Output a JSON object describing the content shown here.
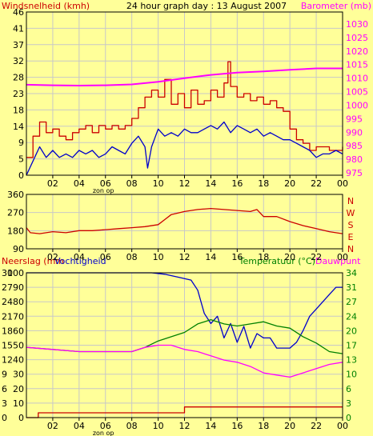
{
  "colors": {
    "background": "#ffff99",
    "plot_bg": "#ffff99",
    "grid": "#c8c8c8",
    "frame": "#000000",
    "red": "#cc0000",
    "blue": "#0000cc",
    "magenta": "#ff00ff",
    "green": "#008000",
    "black": "#000000"
  },
  "chart_data": [
    {
      "type": "line",
      "title": "24 hour graph day : 13 August 2007",
      "ylabel": "Windsnelheid (kmh)",
      "y2label": "Barometer (mb)",
      "ylim": [
        0,
        46
      ],
      "y2lim": [
        975,
        1030
      ],
      "yticks": [
        "0",
        "5",
        "9",
        "14",
        "18",
        "23",
        "28",
        "32",
        "37",
        "41",
        "46"
      ],
      "y2ticks": [
        "975",
        "980",
        "985",
        "990",
        "995",
        "1000",
        "1005",
        "1010",
        "1015",
        "1020",
        "1025",
        "1030"
      ],
      "x_labels": [
        "02",
        "04",
        "06",
        "08",
        "10",
        "12",
        "14",
        "16",
        "18",
        "20",
        "22",
        "00"
      ],
      "sunrise_label": "zon op",
      "grid": true,
      "series": [
        {
          "color": "#cc0000",
          "axis": "left",
          "step": true,
          "x": [
            0,
            0.5,
            1,
            1.5,
            2,
            2.5,
            3,
            3.5,
            4,
            4.5,
            5,
            5.5,
            6,
            6.5,
            7,
            7.5,
            8,
            8.5,
            9,
            9.5,
            10,
            10.5,
            11,
            11.5,
            12,
            12.5,
            13,
            13.5,
            14,
            14.5,
            15,
            15.3,
            15.5,
            16,
            16.5,
            17,
            17.5,
            18,
            18.5,
            19,
            19.5,
            20,
            20.5,
            21,
            21.5,
            22,
            22.5,
            23,
            23.5,
            24
          ],
          "values": [
            5,
            11,
            15,
            12,
            13,
            11,
            10,
            12,
            13,
            14,
            12,
            14,
            13,
            14,
            13,
            14,
            16,
            19,
            22,
            24,
            22,
            27,
            20,
            23,
            19,
            24,
            20,
            21,
            24,
            22,
            26,
            32,
            25,
            22,
            23,
            21,
            22,
            20,
            21,
            19,
            18,
            13,
            10,
            9,
            7,
            8,
            8,
            7,
            7,
            8
          ]
        },
        {
          "color": "#0000cc",
          "axis": "left",
          "step": false,
          "x": [
            0,
            0.5,
            1,
            1.5,
            2,
            2.5,
            3,
            3.5,
            4,
            4.5,
            5,
            5.5,
            6,
            6.5,
            7,
            7.5,
            8,
            8.5,
            9,
            9.2,
            9.5,
            10,
            10.5,
            11,
            11.5,
            12,
            12.5,
            13,
            13.5,
            14,
            14.5,
            15,
            15.5,
            16,
            16.5,
            17,
            17.5,
            18,
            18.5,
            19,
            19.5,
            20,
            20.5,
            21,
            21.5,
            22,
            22.5,
            23,
            23.5,
            24
          ],
          "values": [
            0,
            4,
            8,
            5,
            7,
            5,
            6,
            5,
            7,
            6,
            7,
            5,
            6,
            8,
            7,
            6,
            9,
            11,
            8,
            2,
            8,
            13,
            11,
            12,
            11,
            13,
            12,
            12,
            13,
            14,
            13,
            15,
            12,
            14,
            13,
            12,
            13,
            11,
            12,
            11,
            10,
            10,
            9,
            8,
            7,
            5,
            6,
            6,
            7,
            6
          ]
        },
        {
          "color": "#ff00ff",
          "axis": "right",
          "step": false,
          "x": [
            0,
            2,
            4,
            6,
            8,
            10,
            12,
            14,
            16,
            18,
            20,
            22,
            24
          ],
          "values": [
            1005.5,
            1005.3,
            1005.2,
            1005.3,
            1005.6,
            1006.5,
            1007.7,
            1008.8,
            1009.6,
            1010,
            1010.5,
            1011,
            1011
          ]
        }
      ]
    },
    {
      "type": "line",
      "ylabel": "wind direction (degrees)",
      "ylim": [
        90,
        360
      ],
      "yticks": [
        "90",
        "180",
        "270",
        "360"
      ],
      "right_labels": [
        "N",
        "W",
        "S",
        "E",
        "N"
      ],
      "x_labels": [
        "02",
        "04",
        "06",
        "08",
        "10",
        "12",
        "14",
        "16",
        "18",
        "20",
        "22",
        "00"
      ],
      "series": [
        {
          "color": "#cc0000",
          "x": [
            0,
            0.3,
            1,
            2,
            3,
            4,
            5,
            6,
            7,
            8,
            9,
            10,
            10.5,
            11,
            12,
            13,
            14,
            15,
            16,
            17,
            17.5,
            18,
            19,
            20,
            21,
            22,
            23,
            24
          ],
          "values": [
            195,
            170,
            165,
            175,
            170,
            180,
            180,
            185,
            190,
            195,
            200,
            210,
            235,
            260,
            275,
            285,
            290,
            285,
            280,
            275,
            285,
            250,
            250,
            225,
            205,
            190,
            175,
            165
          ]
        }
      ]
    },
    {
      "type": "line",
      "ylabel": "Neerslag (mm",
      "ylabel_2": "Vochtigheid",
      "y2label": "Temperatuur (°C)",
      "y2label_2": "Dauwpunt",
      "ylim_rain": [
        0,
        30
      ],
      "ylim_humidity": [
        0,
        100
      ],
      "y2lim": [
        0,
        34
      ],
      "yticks_rain": [
        "0",
        "3",
        "6",
        "9",
        "12",
        "15",
        "18",
        "21",
        "24",
        "27",
        "30"
      ],
      "yticks_humidity": [
        "0",
        "10",
        "20",
        "30",
        "40",
        "50",
        "60",
        "70",
        "80",
        "90",
        "100"
      ],
      "y2ticks": [
        "0",
        "3",
        "6",
        "10",
        "13",
        "17",
        "20",
        "24",
        "27",
        "31",
        "34"
      ],
      "x_labels": [
        "02",
        "04",
        "06",
        "08",
        "10",
        "12",
        "14",
        "16",
        "18",
        "20",
        "22",
        "00"
      ],
      "sunrise_label": "zon op",
      "series": [
        {
          "color": "#0000cc",
          "axis": "humidity",
          "x": [
            0,
            4,
            8,
            9.5,
            10.5,
            11.5,
            12.5,
            13,
            13.5,
            14,
            14.5,
            15,
            15.5,
            16,
            16.5,
            17,
            17.5,
            18,
            18.5,
            19,
            19.5,
            20,
            20.5,
            21,
            21.5,
            22,
            22.5,
            23,
            23.5,
            24
          ],
          "values": [
            100,
            100,
            100,
            100,
            99,
            97,
            95,
            88,
            72,
            65,
            70,
            55,
            65,
            52,
            63,
            48,
            58,
            55,
            55,
            48,
            48,
            48,
            52,
            60,
            70,
            75,
            80,
            85,
            90,
            90
          ]
        },
        {
          "color": "#008000",
          "axis": "temp",
          "x": [
            0,
            2,
            4,
            6,
            8,
            9,
            10,
            11,
            12,
            13,
            14,
            15,
            16,
            17,
            18,
            19,
            20,
            21,
            22,
            23,
            24
          ],
          "values": [
            16.5,
            16,
            15.5,
            15.5,
            15.5,
            16.5,
            18,
            19,
            20,
            22,
            23,
            22,
            21.5,
            22,
            22.5,
            21.5,
            21,
            19,
            17.5,
            15.5,
            15
          ]
        },
        {
          "color": "#ff00ff",
          "axis": "temp",
          "x": [
            0,
            2,
            4,
            6,
            8,
            9,
            10,
            11,
            12,
            13,
            14,
            15,
            16,
            17,
            18,
            19,
            20,
            21,
            22,
            23,
            24
          ],
          "values": [
            16.5,
            16,
            15.5,
            15.5,
            15.5,
            16.5,
            17,
            17,
            16,
            15.5,
            14.5,
            13.5,
            13,
            12,
            10.5,
            10,
            9.5,
            10.5,
            11.5,
            12.5,
            13
          ]
        },
        {
          "color": "#cc0000",
          "axis": "rain",
          "step": true,
          "x": [
            0,
            0.3,
            0.9,
            11.5,
            12,
            24
          ],
          "values": [
            0,
            0,
            1,
            1,
            2.2,
            2.2
          ]
        }
      ]
    }
  ]
}
